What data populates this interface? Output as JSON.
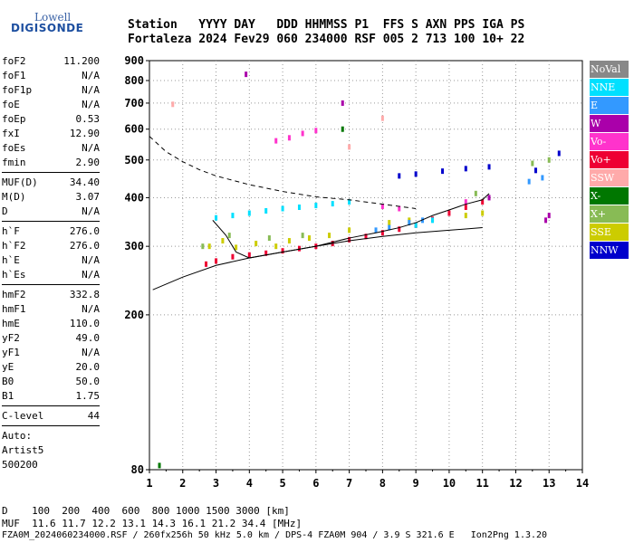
{
  "logo": {
    "line1": "Lowell",
    "line2": "DIGISONDE"
  },
  "header": {
    "row1": "Station   YYYY DAY   DDD HHMMSS P1  FFS S AXN PPS IGA PS",
    "row2": "Fortaleza 2024 Fev29 060 234000 RSF 005 2 713 100 10+ 22"
  },
  "params": {
    "group1": [
      {
        "label": "foF2",
        "value": "11.200"
      },
      {
        "label": "foF1",
        "value": "N/A"
      },
      {
        "label": "foF1p",
        "value": "N/A"
      },
      {
        "label": "foE",
        "value": "N/A"
      },
      {
        "label": "foEp",
        "value": "0.53"
      },
      {
        "label": "fxI",
        "value": "12.90"
      },
      {
        "label": "foEs",
        "value": "N/A"
      },
      {
        "label": "fmin",
        "value": "2.90"
      }
    ],
    "group2": [
      {
        "label": "MUF(D)",
        "value": "34.40"
      },
      {
        "label": "M(D)",
        "value": "3.07"
      },
      {
        "label": "D",
        "value": "N/A"
      }
    ],
    "group3": [
      {
        "label": "h`F",
        "value": "276.0"
      },
      {
        "label": "h`F2",
        "value": "276.0"
      },
      {
        "label": "h`E",
        "value": "N/A"
      },
      {
        "label": "h`Es",
        "value": "N/A"
      }
    ],
    "group4": [
      {
        "label": "hmF2",
        "value": "332.8"
      },
      {
        "label": "hmF1",
        "value": "N/A"
      },
      {
        "label": "hmE",
        "value": "110.0"
      },
      {
        "label": "yF2",
        "value": "49.0"
      },
      {
        "label": "yF1",
        "value": "N/A"
      },
      {
        "label": "yE",
        "value": "20.0"
      },
      {
        "label": "B0",
        "value": "50.0"
      },
      {
        "label": "B1",
        "value": "1.75"
      }
    ],
    "clevel": {
      "label": "C-level",
      "value": "44"
    },
    "auto": [
      "Auto:",
      "Artist5",
      "500200"
    ]
  },
  "legend": [
    {
      "label": "NoVal",
      "color": "#888888"
    },
    {
      "label": "NNE",
      "color": "#00e0ff"
    },
    {
      "label": "E",
      "color": "#3399ff"
    },
    {
      "label": "W",
      "color": "#aa00aa"
    },
    {
      "label": "Vo-",
      "color": "#ff33cc"
    },
    {
      "label": "Vo+",
      "color": "#ee0033"
    },
    {
      "label": "SSW",
      "color": "#ffaaaa"
    },
    {
      "label": "X-",
      "color": "#007700"
    },
    {
      "label": "X+",
      "color": "#88bb55"
    },
    {
      "label": "SSE",
      "color": "#cccc00"
    },
    {
      "label": "NNW",
      "color": "#0000cc"
    }
  ],
  "bottom": {
    "distance_line": "D    100  200  400  600  800 1000 1500 3000 [km]",
    "muf_line": "MUF  11.6 11.7 12.2 13.1 14.3 16.1 21.2 34.4 [MHz]",
    "file_line": "FZA0M_2024060234000.RSF / 260fx256h 50 kHz 5.0 km / DPS-4 FZA0M 904 / 3.9 S 321.6 E   Ion2Png 1.3.20"
  },
  "chart_data": {
    "type": "scatter",
    "title": "",
    "xlabel": "",
    "ylabel": "",
    "xlim": [
      1,
      14
    ],
    "ylim": [
      80,
      900
    ],
    "yscale": "log",
    "xticks": [
      1,
      2,
      3,
      4,
      5,
      6,
      7,
      8,
      9,
      10,
      11,
      12,
      13,
      14
    ],
    "yticks": [
      80,
      200,
      300,
      400,
      500,
      600,
      700,
      800,
      900
    ],
    "grid": "dotted",
    "legend_position": "right",
    "series": [
      {
        "name": "Vo+ trace",
        "color": "#ee0033",
        "points": [
          [
            2.7,
            270
          ],
          [
            3.0,
            275
          ],
          [
            3.5,
            282
          ],
          [
            4.0,
            285
          ],
          [
            4.5,
            288
          ],
          [
            5.0,
            292
          ],
          [
            5.5,
            296
          ],
          [
            6.0,
            300
          ],
          [
            6.5,
            305
          ],
          [
            7.0,
            312
          ],
          [
            7.5,
            318
          ],
          [
            8.0,
            325
          ],
          [
            8.5,
            332
          ],
          [
            9.0,
            340
          ],
          [
            9.5,
            352
          ],
          [
            10.0,
            365
          ],
          [
            10.5,
            378
          ],
          [
            11.0,
            390
          ]
        ]
      },
      {
        "name": "NNE trace",
        "color": "#00e0ff",
        "points": [
          [
            3.0,
            355
          ],
          [
            3.5,
            360
          ],
          [
            4.0,
            365
          ],
          [
            4.5,
            370
          ],
          [
            5.0,
            375
          ],
          [
            5.5,
            378
          ],
          [
            6.0,
            382
          ],
          [
            6.5,
            386
          ],
          [
            7.0,
            390
          ],
          [
            9.0,
            340
          ],
          [
            9.5,
            350
          ]
        ]
      },
      {
        "name": "SSE trace",
        "color": "#cccc00",
        "points": [
          [
            2.8,
            300
          ],
          [
            3.2,
            310
          ],
          [
            3.6,
            298
          ],
          [
            4.2,
            305
          ],
          [
            4.8,
            300
          ],
          [
            5.2,
            310
          ],
          [
            5.8,
            315
          ],
          [
            6.4,
            320
          ],
          [
            7.0,
            330
          ],
          [
            8.2,
            345
          ],
          [
            8.8,
            350
          ],
          [
            10.5,
            360
          ],
          [
            11.0,
            365
          ]
        ]
      },
      {
        "name": "X+ trace",
        "color": "#88bb55",
        "points": [
          [
            2.6,
            300
          ],
          [
            3.4,
            320
          ],
          [
            4.6,
            315
          ],
          [
            5.6,
            320
          ],
          [
            10.8,
            410
          ],
          [
            12.5,
            490
          ],
          [
            13.0,
            500
          ]
        ]
      },
      {
        "name": "Vo- trace",
        "color": "#ff33cc",
        "points": [
          [
            4.8,
            560
          ],
          [
            5.2,
            570
          ],
          [
            5.6,
            585
          ],
          [
            6.0,
            595
          ],
          [
            8.0,
            380
          ],
          [
            8.5,
            375
          ],
          [
            10.5,
            390
          ]
        ]
      },
      {
        "name": "E trace",
        "color": "#3399ff",
        "points": [
          [
            7.8,
            330
          ],
          [
            8.2,
            335
          ],
          [
            8.8,
            345
          ],
          [
            9.2,
            350
          ],
          [
            12.4,
            440
          ],
          [
            12.8,
            450
          ]
        ]
      },
      {
        "name": "NNW trace",
        "color": "#0000cc",
        "points": [
          [
            8.5,
            455
          ],
          [
            9.0,
            460
          ],
          [
            9.8,
            468
          ],
          [
            10.5,
            475
          ],
          [
            11.2,
            480
          ],
          [
            13.3,
            520
          ],
          [
            12.6,
            470
          ]
        ]
      },
      {
        "name": "W trace",
        "color": "#aa00aa",
        "points": [
          [
            3.9,
            830
          ],
          [
            6.8,
            700
          ],
          [
            12.9,
            350
          ],
          [
            13.0,
            360
          ],
          [
            11.2,
            400
          ]
        ]
      },
      {
        "name": "SSW trace",
        "color": "#ffaaaa",
        "points": [
          [
            1.7,
            695
          ],
          [
            8.0,
            640
          ],
          [
            7.0,
            540
          ]
        ]
      },
      {
        "name": "X- trace",
        "color": "#007700",
        "points": [
          [
            1.3,
            82
          ],
          [
            6.8,
            600
          ]
        ]
      }
    ],
    "profile_line": [
      [
        1.1,
        232
      ],
      [
        2.0,
        250
      ],
      [
        3.0,
        268
      ],
      [
        4.0,
        280
      ],
      [
        5.0,
        290
      ],
      [
        6.0,
        300
      ],
      [
        7.0,
        310
      ],
      [
        8.0,
        318
      ],
      [
        9.0,
        325
      ],
      [
        10.0,
        330
      ],
      [
        11.0,
        335
      ]
    ],
    "trace_line": [
      [
        2.9,
        350
      ],
      [
        3.3,
        320
      ],
      [
        3.6,
        290
      ],
      [
        4.0,
        280
      ],
      [
        4.5,
        285
      ],
      [
        5.0,
        290
      ],
      [
        6.0,
        300
      ],
      [
        7.0,
        315
      ],
      [
        7.8,
        325
      ],
      [
        8.5,
        335
      ],
      [
        9.0,
        345
      ],
      [
        9.5,
        360
      ],
      [
        10.0,
        372
      ],
      [
        10.5,
        385
      ],
      [
        11.0,
        395
      ],
      [
        11.2,
        410
      ]
    ],
    "muf_curve": [
      [
        1.0,
        575
      ],
      [
        1.5,
        525
      ],
      [
        2.0,
        495
      ],
      [
        2.5,
        472
      ],
      [
        3.0,
        455
      ],
      [
        4.0,
        432
      ],
      [
        5.0,
        415
      ],
      [
        6.0,
        402
      ],
      [
        7.0,
        395
      ],
      [
        8.0,
        385
      ],
      [
        9.0,
        375
      ]
    ]
  }
}
